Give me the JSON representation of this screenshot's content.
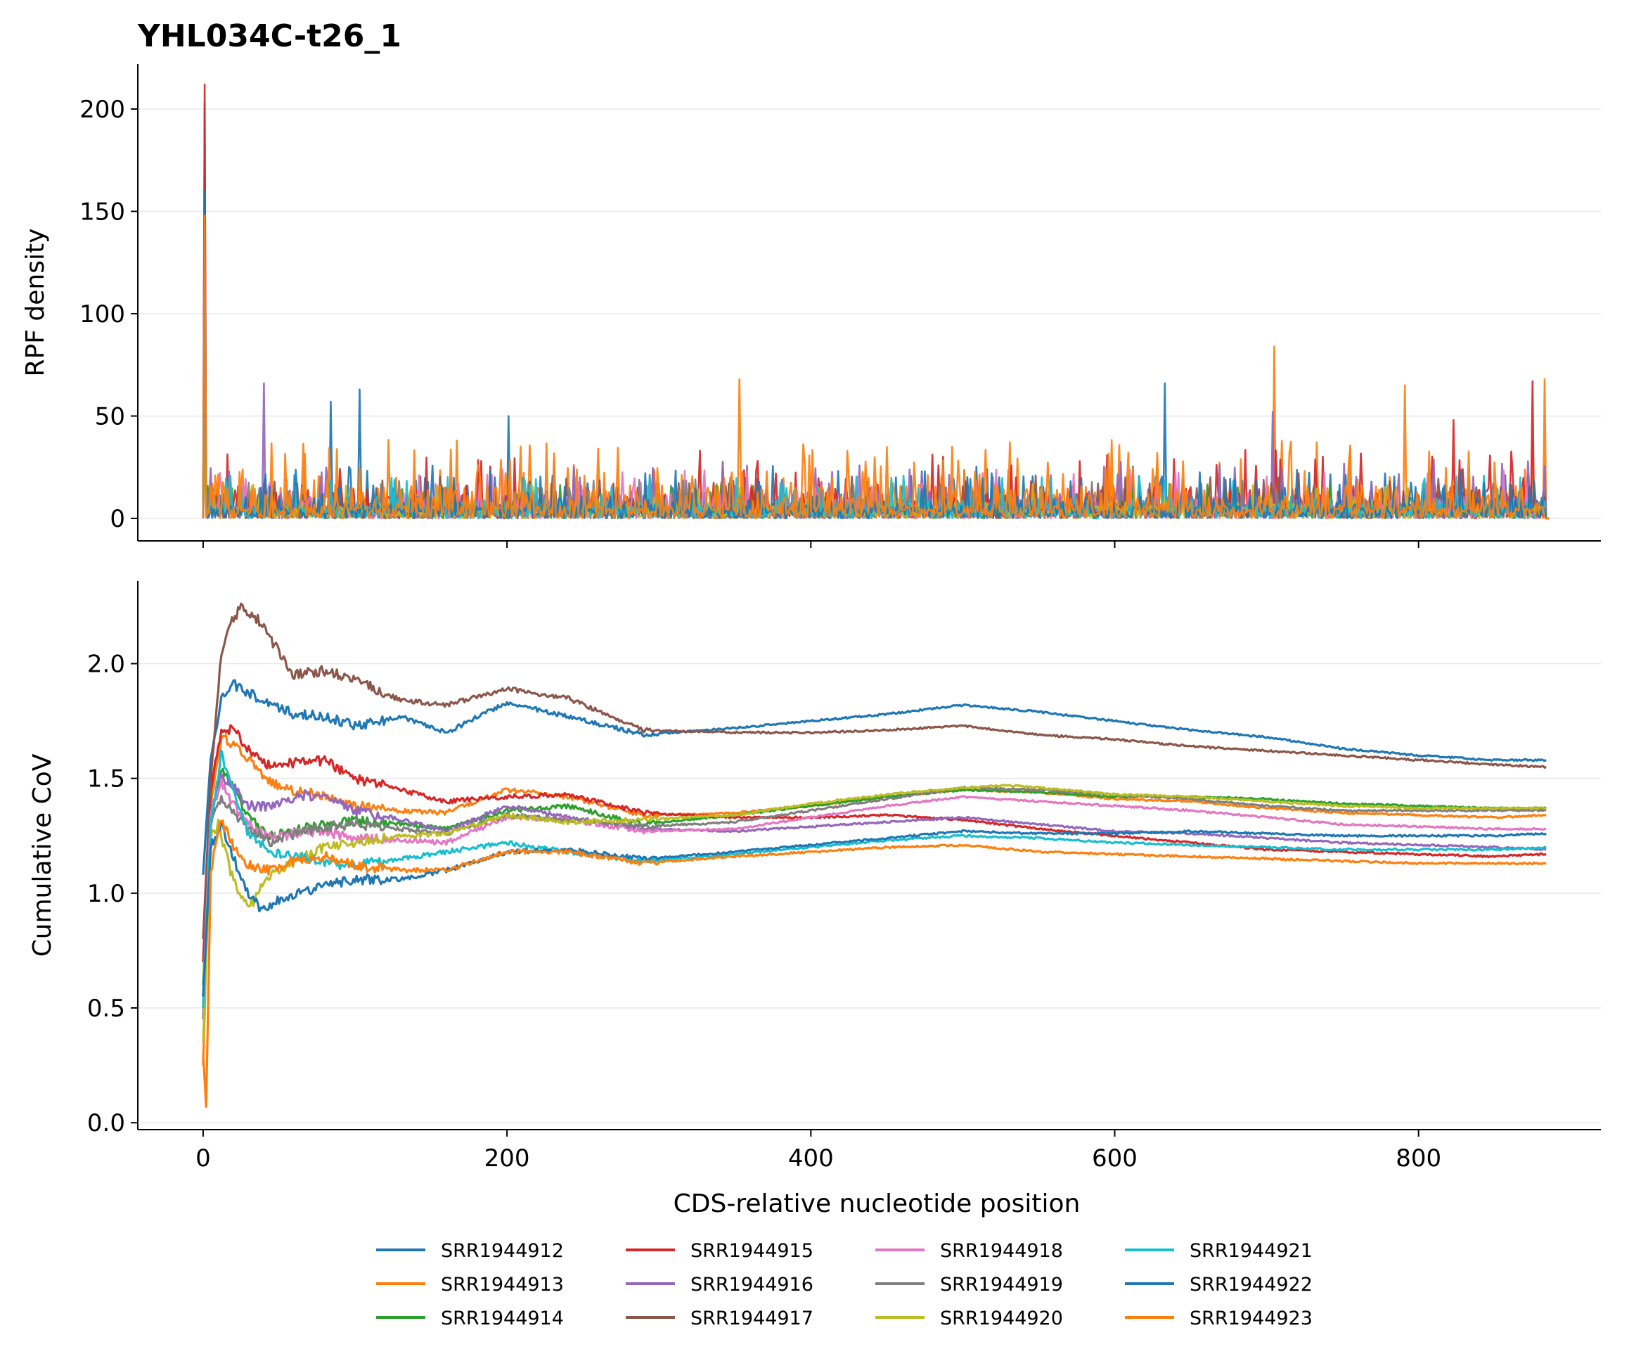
{
  "chart_data": [
    {
      "type": "line",
      "title": "YHL034C-t26_1",
      "xlabel": "",
      "ylabel": "RPF density",
      "xlim": [
        -43,
        920
      ],
      "ylim": [
        -11,
        222
      ],
      "xticks": [
        0,
        200,
        400,
        600,
        800
      ],
      "xtick_labels": [
        "",
        "",
        "",
        "",
        ""
      ],
      "yticks": [
        0,
        50,
        100,
        150,
        200
      ],
      "ytick_labels": [
        "0",
        "50",
        "100",
        "150",
        "200"
      ],
      "grid": "horizontal",
      "series_note": "per-nucleotide RPF density, one trace per sample; start-codon spikes and tallest peaks listed",
      "series": [
        {
          "name": "SRR1944912",
          "color": "#1f77b4",
          "peaks": [
            [
              1,
              203
            ],
            [
              103,
              63
            ],
            [
              84,
              57
            ],
            [
              201,
              50
            ],
            [
              633,
              66
            ]
          ]
        },
        {
          "name": "SRR1944913",
          "color": "#ff7f0e",
          "peaks": [
            [
              1,
              150
            ],
            [
              353,
              68
            ],
            [
              705,
              84
            ],
            [
              791,
              65
            ],
            [
              883,
              68
            ]
          ]
        },
        {
          "name": "SRR1944914",
          "color": "#2ca02c",
          "peaks": [
            [
              1,
              35
            ]
          ]
        },
        {
          "name": "SRR1944915",
          "color": "#d62728",
          "peaks": [
            [
              1,
              212
            ],
            [
              875,
              67
            ],
            [
              823,
              48
            ]
          ]
        },
        {
          "name": "SRR1944916",
          "color": "#9467bd",
          "peaks": [
            [
              1,
              130
            ],
            [
              40,
              66
            ],
            [
              704,
              52
            ]
          ]
        },
        {
          "name": "SRR1944917",
          "color": "#8c564b",
          "peaks": [
            [
              1,
              125
            ]
          ]
        },
        {
          "name": "SRR1944918",
          "color": "#e377c2",
          "peaks": [
            [
              1,
              110
            ]
          ]
        },
        {
          "name": "SRR1944919",
          "color": "#7f7f7f",
          "peaks": [
            [
              1,
              90
            ]
          ]
        },
        {
          "name": "SRR1944920",
          "color": "#bcbd22",
          "peaks": [
            [
              1,
              38
            ]
          ]
        },
        {
          "name": "SRR1944921",
          "color": "#17becf",
          "peaks": [
            [
              1,
              105
            ]
          ]
        },
        {
          "name": "SRR1944922",
          "color": "#1f77b4",
          "peaks": [
            [
              1,
              160
            ]
          ]
        },
        {
          "name": "SRR1944923",
          "color": "#ff7f0e",
          "peaks": [
            [
              1,
              148
            ]
          ]
        }
      ]
    },
    {
      "type": "line",
      "title": "",
      "xlabel": "CDS-relative nucleotide position",
      "ylabel": "Cumulative CoV",
      "xlim": [
        -43,
        920
      ],
      "ylim": [
        -0.03,
        2.36
      ],
      "xticks": [
        0,
        200,
        400,
        600,
        800
      ],
      "xtick_labels": [
        "0",
        "200",
        "400",
        "600",
        "800"
      ],
      "yticks": [
        0.0,
        0.5,
        1.0,
        1.5,
        2.0
      ],
      "ytick_labels": [
        "0.0",
        "0.5",
        "1.0",
        "1.5",
        "2.0"
      ],
      "grid": "horizontal",
      "legend": "bottom-center, 4 columns",
      "series": [
        {
          "name": "SRR1944912",
          "color": "#1f77b4",
          "x": [
            0,
            5,
            12,
            20,
            30,
            45,
            60,
            80,
            100,
            130,
            160,
            200,
            240,
            290,
            350,
            400,
            450,
            500,
            550,
            600,
            650,
            700,
            750,
            800,
            850,
            884
          ],
          "y": [
            1.08,
            1.6,
            1.85,
            1.91,
            1.87,
            1.82,
            1.78,
            1.77,
            1.73,
            1.77,
            1.7,
            1.83,
            1.77,
            1.69,
            1.72,
            1.75,
            1.78,
            1.82,
            1.79,
            1.75,
            1.71,
            1.68,
            1.63,
            1.6,
            1.58,
            1.58
          ]
        },
        {
          "name": "SRR1944913",
          "color": "#ff7f0e",
          "x": [
            0,
            5,
            12,
            20,
            30,
            45,
            60,
            80,
            100,
            130,
            160,
            200,
            240,
            290,
            350,
            400,
            450,
            500,
            550,
            600,
            650,
            700,
            750,
            800,
            850,
            884
          ],
          "y": [
            0.25,
            1.4,
            1.68,
            1.65,
            1.58,
            1.48,
            1.45,
            1.42,
            1.38,
            1.36,
            1.35,
            1.45,
            1.42,
            1.34,
            1.35,
            1.38,
            1.42,
            1.45,
            1.44,
            1.41,
            1.4,
            1.37,
            1.35,
            1.34,
            1.33,
            1.34
          ]
        },
        {
          "name": "SRR1944914",
          "color": "#2ca02c",
          "x": [
            0,
            5,
            12,
            20,
            30,
            45,
            60,
            80,
            100,
            130,
            160,
            200,
            240,
            290,
            350,
            400,
            450,
            500,
            550,
            600,
            650,
            700,
            750,
            800,
            850,
            884
          ],
          "y": [
            0.6,
            1.3,
            1.55,
            1.45,
            1.33,
            1.25,
            1.27,
            1.3,
            1.32,
            1.3,
            1.28,
            1.36,
            1.38,
            1.3,
            1.34,
            1.38,
            1.42,
            1.45,
            1.44,
            1.42,
            1.42,
            1.41,
            1.39,
            1.38,
            1.37,
            1.37
          ]
        },
        {
          "name": "SRR1944915",
          "color": "#d62728",
          "x": [
            0,
            5,
            12,
            20,
            30,
            45,
            60,
            80,
            100,
            130,
            160,
            200,
            240,
            290,
            350,
            400,
            450,
            500,
            550,
            600,
            650,
            700,
            750,
            800,
            850,
            884
          ],
          "y": [
            0.7,
            1.45,
            1.7,
            1.72,
            1.62,
            1.55,
            1.57,
            1.58,
            1.5,
            1.45,
            1.4,
            1.42,
            1.43,
            1.35,
            1.33,
            1.33,
            1.34,
            1.32,
            1.28,
            1.25,
            1.22,
            1.19,
            1.18,
            1.17,
            1.16,
            1.17
          ]
        },
        {
          "name": "SRR1944916",
          "color": "#9467bd",
          "x": [
            0,
            5,
            12,
            20,
            30,
            45,
            60,
            80,
            100,
            130,
            160,
            200,
            240,
            290,
            350,
            400,
            450,
            500,
            550,
            600,
            650,
            700,
            750,
            800,
            850,
            884
          ],
          "y": [
            0.5,
            1.35,
            1.52,
            1.46,
            1.38,
            1.38,
            1.42,
            1.43,
            1.36,
            1.32,
            1.27,
            1.38,
            1.33,
            1.28,
            1.27,
            1.29,
            1.31,
            1.33,
            1.3,
            1.27,
            1.26,
            1.24,
            1.22,
            1.21,
            1.2,
            1.19
          ]
        },
        {
          "name": "SRR1944917",
          "color": "#8c564b",
          "x": [
            0,
            5,
            12,
            20,
            25,
            35,
            45,
            60,
            80,
            100,
            130,
            160,
            200,
            240,
            290,
            350,
            400,
            450,
            500,
            550,
            600,
            650,
            700,
            750,
            800,
            850,
            884
          ],
          "y": [
            0.8,
            1.5,
            2.05,
            2.2,
            2.24,
            2.2,
            2.1,
            1.95,
            1.97,
            1.93,
            1.84,
            1.82,
            1.89,
            1.85,
            1.71,
            1.7,
            1.7,
            1.71,
            1.73,
            1.69,
            1.67,
            1.64,
            1.62,
            1.6,
            1.58,
            1.56,
            1.55
          ]
        },
        {
          "name": "SRR1944918",
          "color": "#e377c2",
          "x": [
            0,
            5,
            12,
            20,
            30,
            45,
            60,
            80,
            100,
            130,
            160,
            200,
            240,
            290,
            350,
            400,
            450,
            500,
            550,
            600,
            650,
            700,
            750,
            800,
            850,
            884
          ],
          "y": [
            0.55,
            1.35,
            1.48,
            1.38,
            1.3,
            1.24,
            1.26,
            1.27,
            1.24,
            1.23,
            1.22,
            1.33,
            1.32,
            1.27,
            1.28,
            1.33,
            1.38,
            1.42,
            1.4,
            1.38,
            1.36,
            1.33,
            1.3,
            1.29,
            1.28,
            1.28
          ]
        },
        {
          "name": "SRR1944919",
          "color": "#7f7f7f",
          "x": [
            0,
            5,
            12,
            20,
            30,
            45,
            60,
            80,
            100,
            130,
            160,
            200,
            240,
            290,
            350,
            400,
            450,
            500,
            550,
            600,
            650,
            700,
            750,
            800,
            850,
            884
          ],
          "y": [
            0.45,
            1.3,
            1.42,
            1.35,
            1.28,
            1.22,
            1.26,
            1.29,
            1.3,
            1.28,
            1.26,
            1.34,
            1.32,
            1.29,
            1.31,
            1.36,
            1.41,
            1.46,
            1.45,
            1.43,
            1.41,
            1.38,
            1.36,
            1.36,
            1.36,
            1.36
          ]
        },
        {
          "name": "SRR1944920",
          "color": "#bcbd22",
          "x": [
            0,
            5,
            10,
            20,
            30,
            40,
            50,
            60,
            80,
            100,
            130,
            160,
            200,
            240,
            290,
            350,
            400,
            450,
            500,
            530,
            550,
            600,
            650,
            700,
            750,
            800,
            850,
            884
          ],
          "y": [
            0.35,
            1.25,
            1.3,
            1.05,
            0.93,
            1.05,
            1.1,
            1.15,
            1.2,
            1.22,
            1.25,
            1.26,
            1.34,
            1.31,
            1.32,
            1.34,
            1.39,
            1.43,
            1.46,
            1.47,
            1.46,
            1.43,
            1.42,
            1.4,
            1.38,
            1.37,
            1.37,
            1.37
          ]
        },
        {
          "name": "SRR1944921",
          "color": "#17becf",
          "x": [
            0,
            5,
            12,
            20,
            30,
            45,
            60,
            80,
            100,
            130,
            160,
            200,
            240,
            290,
            350,
            400,
            450,
            500,
            550,
            600,
            650,
            700,
            750,
            800,
            850,
            884
          ],
          "y": [
            0.5,
            1.3,
            1.6,
            1.45,
            1.25,
            1.18,
            1.17,
            1.13,
            1.12,
            1.15,
            1.18,
            1.22,
            1.18,
            1.14,
            1.17,
            1.2,
            1.23,
            1.25,
            1.24,
            1.22,
            1.21,
            1.2,
            1.19,
            1.19,
            1.19,
            1.2
          ]
        },
        {
          "name": "SRR1944922",
          "color": "#1f77b4",
          "x": [
            0,
            5,
            12,
            20,
            30,
            38,
            45,
            60,
            80,
            100,
            130,
            160,
            200,
            240,
            290,
            350,
            400,
            450,
            500,
            550,
            600,
            650,
            700,
            750,
            800,
            850,
            884
          ],
          "y": [
            0.55,
            1.2,
            1.3,
            1.15,
            1.0,
            0.93,
            0.95,
            1.0,
            1.03,
            1.06,
            1.06,
            1.1,
            1.18,
            1.19,
            1.15,
            1.18,
            1.21,
            1.24,
            1.27,
            1.26,
            1.26,
            1.27,
            1.26,
            1.25,
            1.25,
            1.25,
            1.26
          ]
        },
        {
          "name": "SRR1944923",
          "color": "#ff7f0e",
          "x": [
            0,
            2,
            5,
            12,
            20,
            30,
            45,
            60,
            80,
            100,
            130,
            160,
            200,
            240,
            290,
            350,
            400,
            450,
            500,
            550,
            600,
            650,
            700,
            750,
            800,
            850,
            884
          ],
          "y": [
            0.3,
            0.07,
            1.1,
            1.32,
            1.2,
            1.12,
            1.1,
            1.14,
            1.16,
            1.12,
            1.1,
            1.1,
            1.18,
            1.18,
            1.13,
            1.16,
            1.18,
            1.2,
            1.21,
            1.18,
            1.17,
            1.16,
            1.15,
            1.14,
            1.13,
            1.13,
            1.13
          ]
        }
      ]
    }
  ]
}
